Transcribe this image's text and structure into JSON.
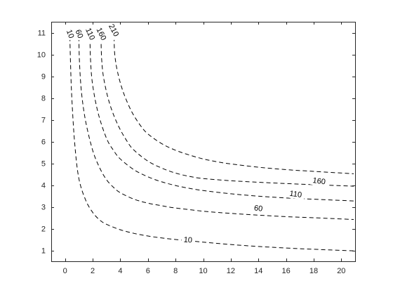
{
  "chart_data": {
    "type": "line",
    "title": "",
    "xlabel": "",
    "ylabel": "",
    "xlim": [
      -1,
      21
    ],
    "ylim": [
      0.5,
      11.5
    ],
    "x_ticks": [
      0,
      2,
      4,
      6,
      8,
      10,
      12,
      14,
      16,
      18,
      20
    ],
    "y_ticks": [
      1,
      2,
      3,
      4,
      5,
      6,
      7,
      8,
      9,
      10,
      11
    ],
    "grid": false,
    "line_style": "dashed",
    "line_color": "#000000",
    "series": [
      {
        "label": "10",
        "x": [
          0.35,
          0.4,
          0.5,
          0.7,
          1.0,
          1.5,
          2.0,
          2.5,
          3.0,
          4.0,
          5.0,
          6.0,
          7.0,
          8.0,
          10.0,
          12.0,
          14.0,
          16.0,
          18.0,
          20.9
        ],
        "y": [
          10.8,
          9.5,
          7.9,
          5.9,
          4.3,
          3.3,
          2.75,
          2.4,
          2.2,
          1.95,
          1.78,
          1.66,
          1.57,
          1.5,
          1.38,
          1.27,
          1.18,
          1.11,
          1.05,
          0.98
        ],
        "label_position": [
          8.9,
          1.5
        ],
        "label_rotation": 5
      },
      {
        "label": "60",
        "x": [
          1.0,
          1.05,
          1.2,
          1.5,
          2.0,
          2.5,
          3.0,
          3.5,
          4.0,
          5.0,
          6.0,
          7.0,
          8.0,
          10.0,
          12.0,
          14.0,
          16.0,
          18.0,
          20.9
        ],
        "y": [
          10.8,
          9.6,
          8.2,
          6.9,
          5.6,
          4.8,
          4.25,
          3.9,
          3.65,
          3.35,
          3.17,
          3.05,
          2.95,
          2.8,
          2.7,
          2.62,
          2.55,
          2.5,
          2.42
        ],
        "label_position": [
          14.0,
          2.95
        ],
        "label_rotation": 8
      },
      {
        "label": "110",
        "x": [
          1.8,
          1.85,
          2.0,
          2.4,
          3.0,
          3.5,
          4.0,
          5.0,
          6.0,
          7.0,
          8.0,
          9.0,
          10.0,
          12.0,
          14.0,
          16.0,
          18.0,
          20.9
        ],
        "y": [
          10.8,
          9.7,
          8.6,
          7.3,
          6.15,
          5.6,
          5.2,
          4.7,
          4.38,
          4.15,
          3.98,
          3.85,
          3.75,
          3.6,
          3.49,
          3.41,
          3.35,
          3.27
        ],
        "label_position": [
          16.7,
          3.6
        ],
        "label_rotation": 8
      },
      {
        "label": "160",
        "x": [
          2.6,
          2.65,
          2.8,
          3.2,
          3.8,
          4.5,
          5.0,
          6.0,
          7.0,
          8.0,
          9.0,
          10.0,
          12.0,
          14.0,
          16.0,
          18.0,
          20.9
        ],
        "y": [
          10.8,
          9.8,
          8.9,
          7.8,
          6.8,
          6.0,
          5.6,
          5.1,
          4.78,
          4.55,
          4.4,
          4.3,
          4.2,
          4.13,
          4.07,
          4.02,
          3.95
        ],
        "label_position": [
          18.4,
          4.2
        ],
        "label_rotation": 8
      },
      {
        "label": "210",
        "x": [
          3.55,
          3.6,
          3.8,
          4.2,
          4.8,
          5.5,
          6.0,
          7.0,
          8.0,
          9.0,
          10.0,
          11.0,
          12.0,
          14.0,
          16.0,
          18.0,
          20.9
        ],
        "y": [
          10.8,
          10.0,
          9.2,
          8.3,
          7.4,
          6.7,
          6.35,
          5.9,
          5.6,
          5.38,
          5.2,
          5.07,
          4.97,
          4.82,
          4.71,
          4.63,
          4.52
        ],
        "label_position": [
          3.55,
          11.12
        ],
        "label_rotation": 62
      }
    ],
    "label_rotations_top": {
      "10": 70,
      "60": 68,
      "110": 66,
      "160": 64
    }
  }
}
